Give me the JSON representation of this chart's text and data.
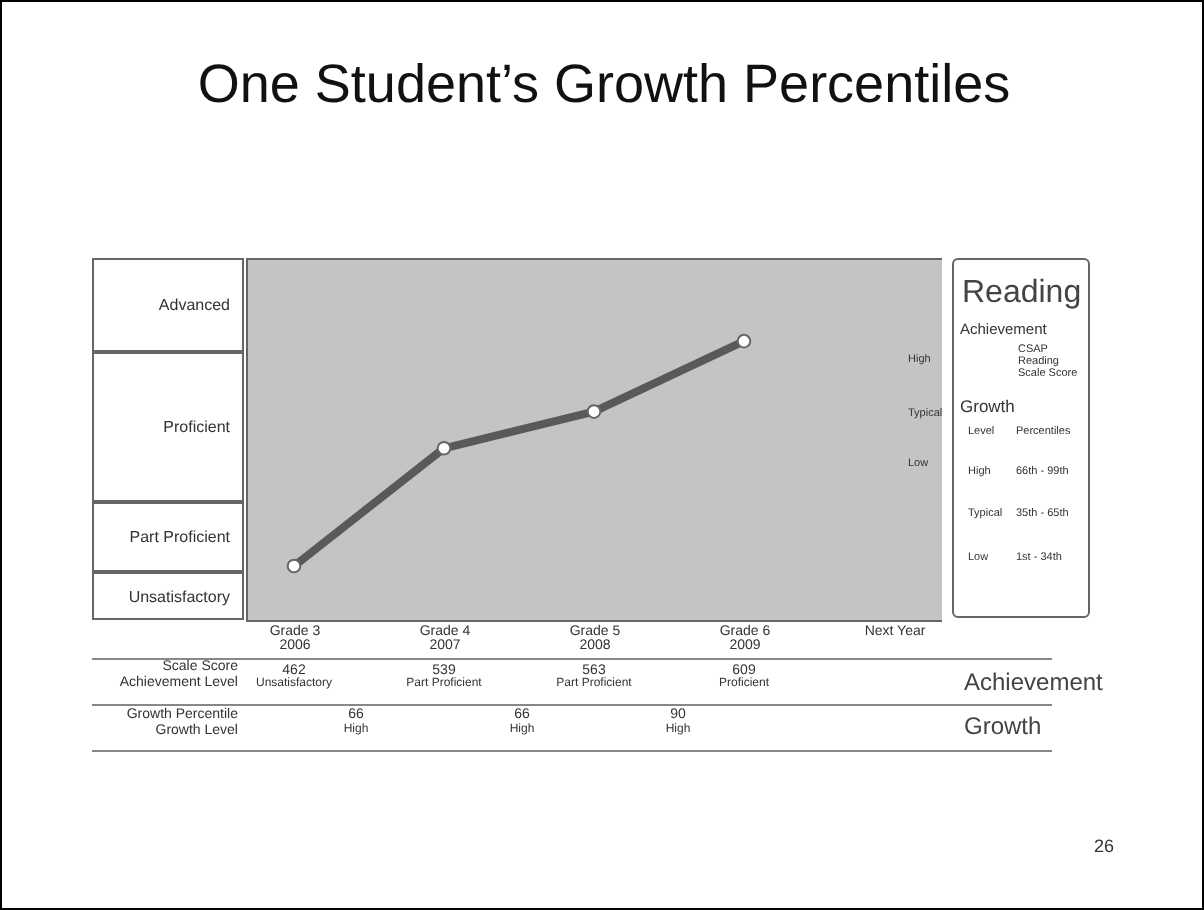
{
  "chart_data": {
    "type": "line",
    "title": "One Student’s Growth Percentiles",
    "categories": [
      "Grade 3\n2006",
      "Grade 4\n2007",
      "Grade 5\n2008",
      "Grade 6\n2009",
      "Next Year"
    ],
    "series": [
      {
        "color": "#595959",
        "values": [
          462,
          539,
          563,
          609,
          null
        ]
      }
    ],
    "data_labels": true,
    "marker": "circle",
    "line_style": "solid",
    "annotations": [
      "Advanced",
      "Proficient",
      "Part Proficient",
      "Unsatisfactory",
      "Scale Score",
      "Achievement Level",
      "Unsatisfactory",
      "Part Proficient",
      "Part Proficient",
      "Proficient",
      "Achievement",
      "Growth Percentile",
      "Growth Level",
      "66",
      "High",
      "66",
      "High",
      "90",
      "High",
      "Growth",
      "High",
      "Typical",
      "Low",
      "Reading",
      "Achievement",
      "CSAP Reading Scale Score",
      "Growth",
      "Level",
      "Percentiles",
      "High",
      "66th - 99th",
      "Typical",
      "35th - 65th",
      "Low",
      "1st - 34th",
      "26"
    ]
  }
}
